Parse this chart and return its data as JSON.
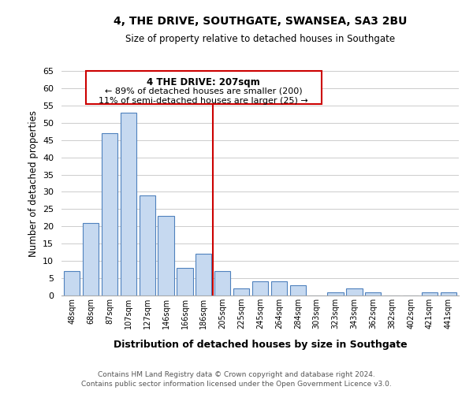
{
  "title": "4, THE DRIVE, SOUTHGATE, SWANSEA, SA3 2BU",
  "subtitle": "Size of property relative to detached houses in Southgate",
  "xlabel": "Distribution of detached houses by size in Southgate",
  "ylabel": "Number of detached properties",
  "bar_labels": [
    "48sqm",
    "68sqm",
    "87sqm",
    "107sqm",
    "127sqm",
    "146sqm",
    "166sqm",
    "186sqm",
    "205sqm",
    "225sqm",
    "245sqm",
    "264sqm",
    "284sqm",
    "303sqm",
    "323sqm",
    "343sqm",
    "362sqm",
    "382sqm",
    "402sqm",
    "421sqm",
    "441sqm"
  ],
  "bar_values": [
    7,
    21,
    47,
    53,
    29,
    23,
    8,
    12,
    7,
    2,
    4,
    4,
    3,
    0,
    1,
    2,
    1,
    0,
    0,
    1,
    1
  ],
  "bar_color": "#c6d9f0",
  "bar_edge_color": "#4f81bd",
  "ylim": [
    0,
    65
  ],
  "yticks": [
    0,
    5,
    10,
    15,
    20,
    25,
    30,
    35,
    40,
    45,
    50,
    55,
    60,
    65
  ],
  "reference_line_index": 8,
  "reference_line_color": "#cc0000",
  "annotation_title": "4 THE DRIVE: 207sqm",
  "annotation_line1": "← 89% of detached houses are smaller (200)",
  "annotation_line2": "11% of semi-detached houses are larger (25) →",
  "annotation_box_color": "#cc0000",
  "footnote1": "Contains HM Land Registry data © Crown copyright and database right 2024.",
  "footnote2": "Contains public sector information licensed under the Open Government Licence v3.0.",
  "background_color": "#ffffff",
  "grid_color": "#cccccc"
}
